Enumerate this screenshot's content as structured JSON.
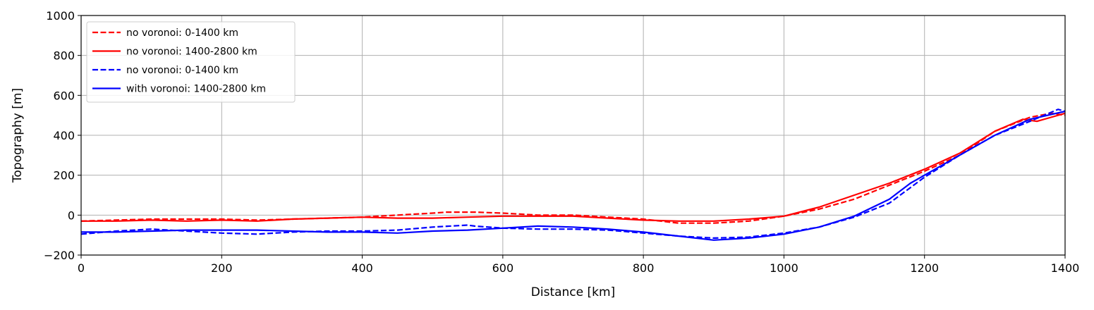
{
  "chart_data": {
    "type": "line",
    "xlabel": "Distance [km]",
    "ylabel": "Topography [m]",
    "xlim": [
      0,
      1400
    ],
    "ylim": [
      -200,
      1000
    ],
    "x_ticks": [
      0,
      200,
      400,
      600,
      800,
      1000,
      1200,
      1400
    ],
    "y_ticks": [
      -200,
      0,
      200,
      400,
      600,
      800,
      1000
    ],
    "grid": true,
    "legend_position": "upper-left",
    "series": [
      {
        "name": "no voronoi: 0-1400 km",
        "color": "#ff0000",
        "dash": "dashed",
        "x": [
          0,
          50,
          100,
          150,
          200,
          250,
          300,
          350,
          400,
          450,
          500,
          520,
          550,
          560,
          600,
          650,
          700,
          750,
          800,
          850,
          900,
          950,
          1000,
          1050,
          1100,
          1150,
          1200,
          1250,
          1300,
          1350,
          1380,
          1400
        ],
        "y": [
          -30,
          -25,
          -20,
          -20,
          -20,
          -25,
          -20,
          -15,
          -10,
          0,
          10,
          15,
          15,
          15,
          10,
          0,
          0,
          -10,
          -20,
          -40,
          -40,
          -30,
          -5,
          30,
          80,
          150,
          220,
          300,
          420,
          490,
          510,
          500
        ]
      },
      {
        "name": "no voronoi: 1400-2800 km",
        "color": "#ff0000",
        "dash": "solid",
        "x": [
          0,
          50,
          100,
          150,
          200,
          250,
          300,
          350,
          400,
          450,
          500,
          550,
          600,
          650,
          700,
          750,
          800,
          850,
          900,
          950,
          1000,
          1050,
          1100,
          1150,
          1200,
          1250,
          1300,
          1340,
          1360,
          1380,
          1400
        ],
        "y": [
          -30,
          -30,
          -25,
          -30,
          -25,
          -30,
          -20,
          -15,
          -10,
          -15,
          -15,
          -10,
          -5,
          -5,
          -5,
          -15,
          -25,
          -30,
          -30,
          -20,
          -5,
          40,
          100,
          160,
          230,
          310,
          420,
          480,
          470,
          490,
          510
        ]
      },
      {
        "name": "no voronoi: 0-1400 km",
        "color": "#0000ff",
        "dash": "dashed",
        "x": [
          0,
          50,
          100,
          150,
          200,
          250,
          300,
          350,
          400,
          450,
          500,
          550,
          560,
          600,
          650,
          700,
          750,
          800,
          850,
          900,
          950,
          1000,
          1050,
          1100,
          1150,
          1200,
          1250,
          1300,
          1350,
          1390,
          1400
        ],
        "y": [
          -95,
          -80,
          -70,
          -80,
          -90,
          -95,
          -85,
          -80,
          -80,
          -75,
          -60,
          -50,
          -55,
          -65,
          -70,
          -70,
          -75,
          -90,
          -105,
          -115,
          -110,
          -90,
          -60,
          -10,
          60,
          190,
          300,
          400,
          470,
          530,
          520
        ]
      },
      {
        "name": "with voronoi: 1400-2800 km",
        "color": "#0000ff",
        "dash": "solid",
        "x": [
          0,
          50,
          100,
          150,
          200,
          250,
          300,
          350,
          400,
          450,
          500,
          550,
          600,
          650,
          700,
          750,
          800,
          850,
          900,
          950,
          1000,
          1050,
          1100,
          1150,
          1180,
          1200,
          1250,
          1300,
          1350,
          1400
        ],
        "y": [
          -85,
          -85,
          -80,
          -75,
          -75,
          -75,
          -80,
          -85,
          -85,
          -90,
          -80,
          -75,
          -65,
          -55,
          -60,
          -70,
          -85,
          -105,
          -125,
          -115,
          -95,
          -60,
          -5,
          80,
          160,
          200,
          300,
          400,
          480,
          520
        ]
      }
    ]
  }
}
